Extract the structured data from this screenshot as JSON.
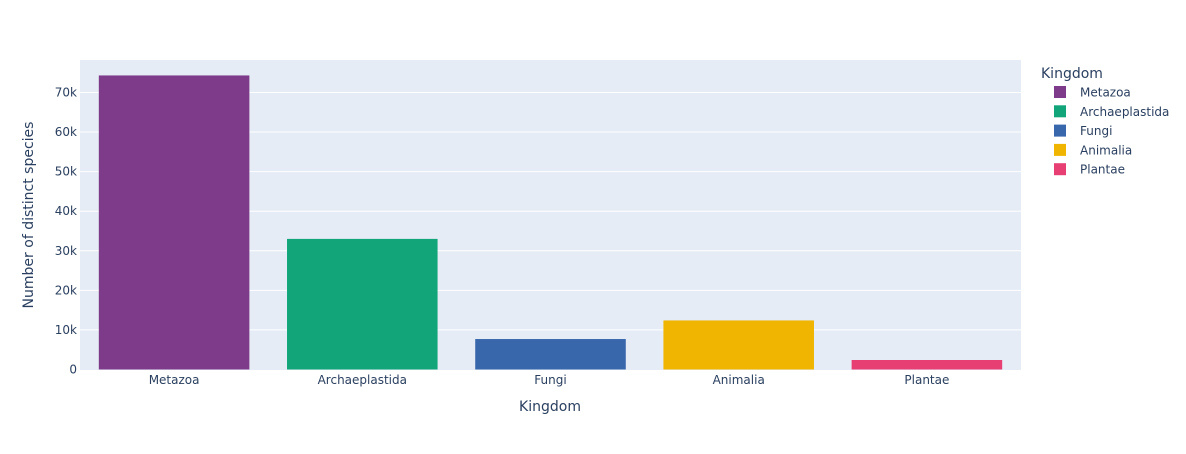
{
  "chart_data": {
    "type": "bar",
    "title": "",
    "xlabel": "Kingdom",
    "ylabel": "Number of distinct species",
    "categories": [
      "Metazoa",
      "Archaeplastida",
      "Fungi",
      "Animalia",
      "Plantae"
    ],
    "values": [
      74300,
      33000,
      7700,
      12400,
      2400
    ],
    "colors": [
      "#7e3b8a",
      "#13a57a",
      "#3967ac",
      "#f0b500",
      "#e73f74"
    ],
    "ylim": [
      0,
      78200
    ],
    "yticks": [
      0,
      10000,
      20000,
      30000,
      40000,
      50000,
      60000,
      70000
    ],
    "ytick_labels": [
      "0",
      "10k",
      "20k",
      "30k",
      "40k",
      "50k",
      "60k",
      "70k"
    ],
    "grid": true,
    "plot_bgcolor": "#e5ecf6",
    "legend": {
      "title": "Kingdom",
      "placement": "right",
      "entries": [
        "Metazoa",
        "Archaeplastida",
        "Fungi",
        "Animalia",
        "Plantae"
      ]
    }
  }
}
